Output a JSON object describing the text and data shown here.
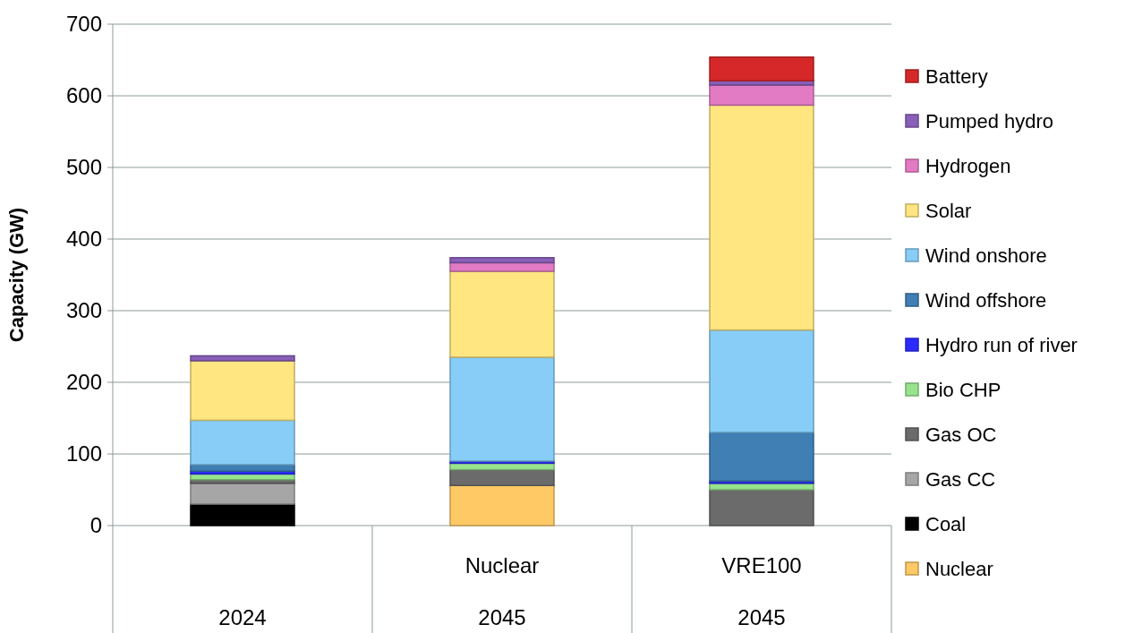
{
  "chart_data": {
    "type": "bar",
    "stacked": true,
    "ylabel": "Capacity (GW)",
    "categories": [
      null,
      "Nuclear",
      "VRE100"
    ],
    "annotations": [
      "2024",
      "2045",
      "2045"
    ],
    "ylim": [
      0,
      700
    ],
    "yticks": [
      0,
      100,
      200,
      300,
      400,
      500,
      600,
      700
    ],
    "grid": "y",
    "legend": "right",
    "series": [
      {
        "name": "Nuclear",
        "color": "#ffc966",
        "values": [
          0,
          56,
          0
        ]
      },
      {
        "name": "Coal",
        "color": "#000000",
        "values": [
          30,
          0,
          0
        ]
      },
      {
        "name": "Gas CC",
        "color": "#a6a6a6",
        "values": [
          29,
          0,
          0
        ]
      },
      {
        "name": "Gas OC",
        "color": "#6b6b6b",
        "values": [
          5,
          22,
          50
        ]
      },
      {
        "name": "Bio CHP",
        "color": "#98e38e",
        "values": [
          8,
          9,
          9
        ]
      },
      {
        "name": "Hydro run of river",
        "color": "#2b2bff",
        "values": [
          4,
          3,
          3
        ]
      },
      {
        "name": "Wind offshore",
        "color": "#3f7fb4",
        "values": [
          9,
          0,
          68
        ]
      },
      {
        "name": "Wind onshore",
        "color": "#87cdf7",
        "values": [
          62,
          145,
          143
        ]
      },
      {
        "name": "Solar",
        "color": "#ffe680",
        "values": [
          83,
          120,
          314
        ]
      },
      {
        "name": "Hydrogen",
        "color": "#e27bc4",
        "values": [
          0,
          12,
          28
        ]
      },
      {
        "name": "Pumped hydro",
        "color": "#8a5fb8",
        "values": [
          7,
          7,
          6
        ]
      },
      {
        "name": "Battery",
        "color": "#d62828",
        "values": [
          0,
          0,
          33
        ]
      }
    ]
  }
}
